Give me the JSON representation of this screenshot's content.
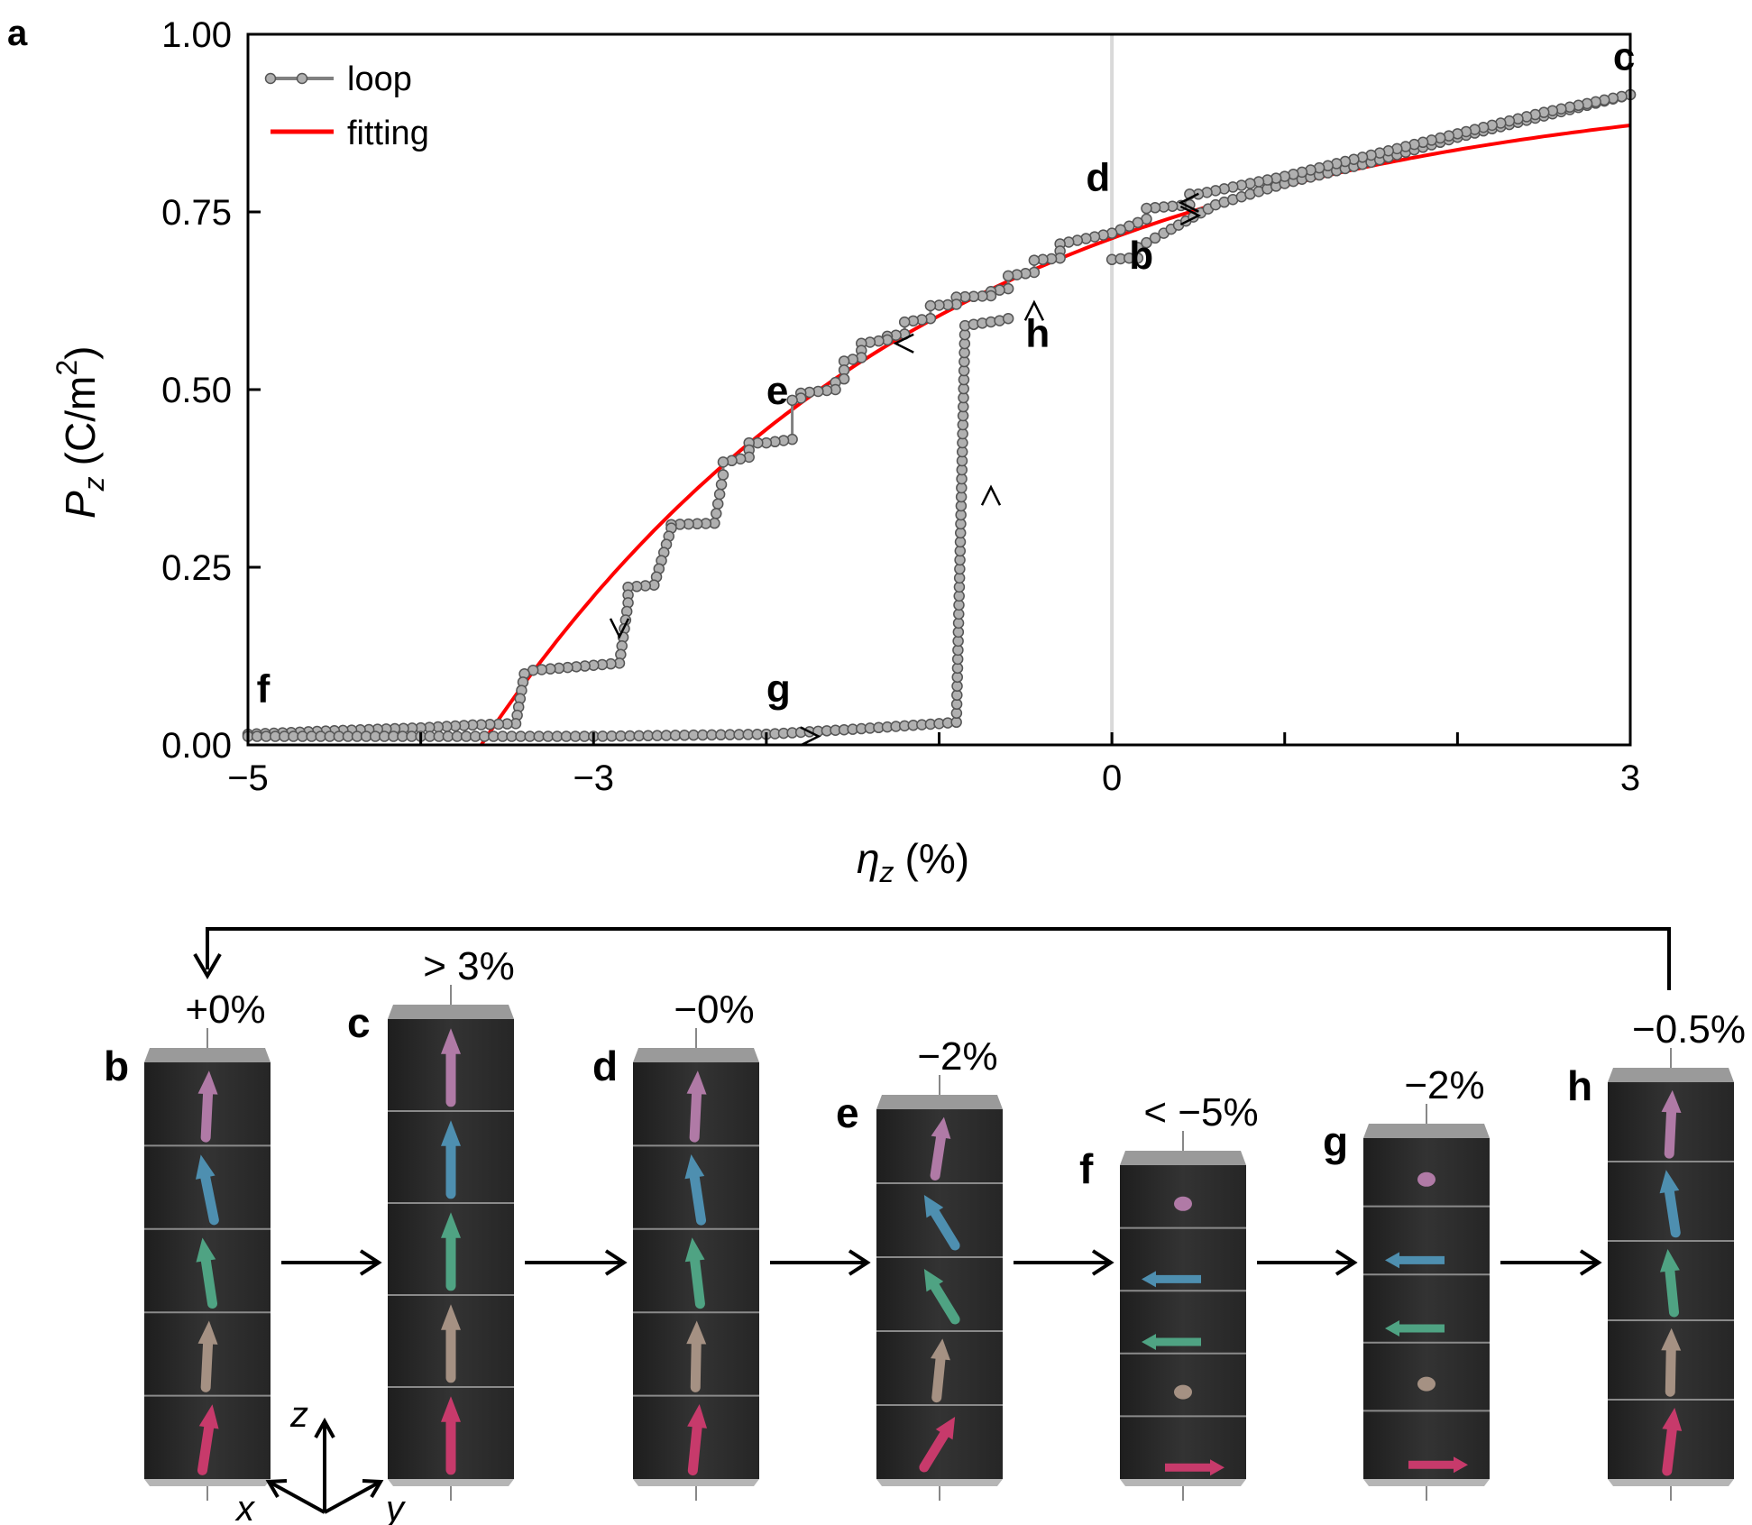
{
  "panel_label": "a",
  "colors": {
    "loop": "#808080",
    "loop_marker_fill": "#b0b0b0",
    "loop_marker_stroke": "#555555",
    "fitting": "#ff0000",
    "zero_line": "#d9d9d9",
    "axis": "#000000",
    "box": "#2b2b2b",
    "arrow_colors": [
      "#b07aa6",
      "#4e8fb0",
      "#4fa383",
      "#a59183",
      "#c73a6b"
    ]
  },
  "chart_data": {
    "type": "line",
    "xlabel_symbol": "η",
    "xlabel_sub": "z",
    "xlabel_unit": "(%)",
    "ylabel_symbol": "P",
    "ylabel_sub": "z",
    "ylabel_unit": "(C/m",
    "ylabel_sup": "2",
    "ylabel_close": ")",
    "xlim": [
      -5,
      3
    ],
    "ylim": [
      0,
      1
    ],
    "x_ticks": [
      -5,
      -3,
      0,
      3
    ],
    "x_tick_labels": [
      "−5",
      "−3",
      "0",
      "3"
    ],
    "x_minor_ticks": [
      -4,
      -2,
      -1,
      1,
      2
    ],
    "y_ticks": [
      0,
      0.25,
      0.5,
      0.75,
      1.0
    ],
    "y_tick_labels": [
      "0.00",
      "0.25",
      "0.50",
      "0.75",
      "1.00"
    ],
    "legend": [
      {
        "key": "loop",
        "label": "loop"
      },
      {
        "key": "fitting",
        "label": "fitting"
      }
    ],
    "legend_position": "top-left",
    "zero_line_x": 0,
    "series": [
      {
        "name": "loop",
        "segments": [
          {
            "name": "b-to-c",
            "points": [
              [
                0,
                0.683
              ],
              [
                0.1,
                0.685
              ],
              [
                0.15,
                0.685
              ],
              [
                0.15,
                0.7
              ],
              [
                0.3,
                0.72
              ],
              [
                0.6,
                0.76
              ],
              [
                1.0,
                0.79
              ],
              [
                1.5,
                0.82
              ],
              [
                2.0,
                0.855
              ],
              [
                2.5,
                0.885
              ],
              [
                3.0,
                0.915
              ]
            ]
          },
          {
            "name": "c-to-f",
            "points": [
              [
                3.0,
                0.915
              ],
              [
                2.5,
                0.89
              ],
              [
                2.0,
                0.86
              ],
              [
                1.5,
                0.83
              ],
              [
                1.0,
                0.8
              ],
              [
                0.5,
                0.775
              ],
              [
                0.45,
                0.775
              ],
              [
                0.45,
                0.76
              ],
              [
                0.2,
                0.755
              ],
              [
                0.2,
                0.74
              ],
              [
                0.0,
                0.72
              ],
              [
                -0.3,
                0.705
              ],
              [
                -0.3,
                0.685
              ],
              [
                -0.45,
                0.682
              ],
              [
                -0.45,
                0.665
              ],
              [
                -0.6,
                0.66
              ],
              [
                -0.6,
                0.642
              ],
              [
                -0.7,
                0.638
              ],
              [
                -0.7,
                0.632
              ],
              [
                -0.9,
                0.63
              ],
              [
                -0.9,
                0.62
              ],
              [
                -1.05,
                0.618
              ],
              [
                -1.05,
                0.6
              ],
              [
                -1.2,
                0.595
              ],
              [
                -1.2,
                0.578
              ],
              [
                -1.3,
                0.575
              ],
              [
                -1.3,
                0.57
              ],
              [
                -1.45,
                0.565
              ],
              [
                -1.45,
                0.545
              ],
              [
                -1.55,
                0.54
              ],
              [
                -1.55,
                0.515
              ],
              [
                -1.6,
                0.51
              ],
              [
                -1.6,
                0.5
              ],
              [
                -1.8,
                0.495
              ],
              [
                -1.8,
                0.488
              ],
              [
                -1.85,
                0.485
              ],
              [
                -1.85,
                0.43
              ],
              [
                -2.0,
                0.425
              ],
              [
                -2.1,
                0.425
              ],
              [
                -2.1,
                0.405
              ],
              [
                -2.2,
                0.4
              ],
              [
                -2.25,
                0.398
              ],
              [
                -2.25,
                0.38
              ],
              [
                -2.3,
                0.312
              ],
              [
                -2.55,
                0.31
              ],
              [
                -2.55,
                0.305
              ],
              [
                -2.65,
                0.225
              ],
              [
                -2.8,
                0.222
              ],
              [
                -2.8,
                0.2
              ],
              [
                -2.85,
                0.115
              ],
              [
                -3.1,
                0.11
              ],
              [
                -3.2,
                0.108
              ],
              [
                -3.35,
                0.105
              ],
              [
                -3.4,
                0.1
              ],
              [
                -3.45,
                0.03
              ],
              [
                -3.7,
                0.028
              ],
              [
                -4.0,
                0.024
              ],
              [
                -4.5,
                0.02
              ],
              [
                -5.0,
                0.015
              ]
            ]
          },
          {
            "name": "f-to-h",
            "points": [
              [
                -5.0,
                0.012
              ],
              [
                -4.0,
                0.012
              ],
              [
                -3.0,
                0.012
              ],
              [
                -2.0,
                0.015
              ],
              [
                -1.5,
                0.022
              ],
              [
                -1.0,
                0.03
              ],
              [
                -0.9,
                0.032
              ],
              [
                -0.85,
                0.59
              ],
              [
                -0.65,
                0.597
              ],
              [
                -0.6,
                0.6
              ]
            ]
          }
        ],
        "arrow_marks": [
          {
            "x": -0.7,
            "y": 0.35,
            "dir": "up"
          },
          {
            "x": -2.85,
            "y": 0.165,
            "dir": "down"
          },
          {
            "x": -1.2,
            "y": 0.565,
            "dir": "left"
          },
          {
            "x": 0.45,
            "y": 0.763,
            "dir": "left"
          },
          {
            "x": 0.45,
            "y": 0.745,
            "dir": "right"
          },
          {
            "x": -1.75,
            "y": 0.012,
            "dir": "right"
          },
          {
            "x": -0.45,
            "y": 0.61,
            "dir": "up"
          }
        ]
      },
      {
        "name": "fitting",
        "function": "0.945*(1-exp(-(x+3.65)/2.6))",
        "x_start": -3.65,
        "x_end": 3
      }
    ],
    "annotations": [
      {
        "label": "c",
        "x": 2.9,
        "y": 0.95
      },
      {
        "label": "d",
        "x": -0.15,
        "y": 0.78
      },
      {
        "label": "b",
        "x": 0.1,
        "y": 0.67
      },
      {
        "label": "h",
        "x": -0.5,
        "y": 0.56
      },
      {
        "label": "e",
        "x": -2.0,
        "y": 0.48
      },
      {
        "label": "f",
        "x": -4.95,
        "y": 0.06
      },
      {
        "label": "g",
        "x": -2.0,
        "y": 0.06
      }
    ]
  },
  "schematic": {
    "loop_back_arrow": "from h to b",
    "axes_labels": {
      "z": "z",
      "x": "x",
      "y": "y"
    },
    "columns": [
      {
        "letter": "b",
        "strain": "+0%",
        "arrows": [
          {
            "t": "up",
            "tilt": 0.05
          },
          {
            "t": "up",
            "tilt": -0.2
          },
          {
            "t": "up",
            "tilt": -0.15
          },
          {
            "t": "up",
            "tilt": 0.05
          },
          {
            "t": "up",
            "tilt": 0.15
          }
        ]
      },
      {
        "letter": "c",
        "strain": "> 3%",
        "arrows": [
          {
            "t": "up",
            "tilt": 0
          },
          {
            "t": "up",
            "tilt": 0
          },
          {
            "t": "up",
            "tilt": 0
          },
          {
            "t": "up",
            "tilt": 0
          },
          {
            "t": "up",
            "tilt": 0
          }
        ]
      },
      {
        "letter": "d",
        "strain": "−0%",
        "arrows": [
          {
            "t": "up",
            "tilt": 0.05
          },
          {
            "t": "up",
            "tilt": -0.15
          },
          {
            "t": "up",
            "tilt": -0.12
          },
          {
            "t": "up",
            "tilt": 0.02
          },
          {
            "t": "up",
            "tilt": 0.1
          }
        ]
      },
      {
        "letter": "e",
        "strain": "−2%",
        "arrows": [
          {
            "t": "up",
            "tilt": 0.15
          },
          {
            "t": "up",
            "tilt": -0.55
          },
          {
            "t": "up",
            "tilt": -0.55
          },
          {
            "t": "up",
            "tilt": 0.1
          },
          {
            "t": "up",
            "tilt": 0.55
          }
        ]
      },
      {
        "letter": "f",
        "strain": "< −5%",
        "arrows": [
          {
            "t": "dot"
          },
          {
            "t": "left"
          },
          {
            "t": "left"
          },
          {
            "t": "dot"
          },
          {
            "t": "right"
          }
        ]
      },
      {
        "letter": "g",
        "strain": "−2%",
        "arrows": [
          {
            "t": "dot"
          },
          {
            "t": "left"
          },
          {
            "t": "left"
          },
          {
            "t": "dot"
          },
          {
            "t": "right"
          }
        ]
      },
      {
        "letter": "h",
        "strain": "−0.5%",
        "arrows": [
          {
            "t": "up",
            "tilt": 0.05
          },
          {
            "t": "up",
            "tilt": -0.15
          },
          {
            "t": "up",
            "tilt": -0.1
          },
          {
            "t": "up",
            "tilt": 0.02
          },
          {
            "t": "up",
            "tilt": 0.12
          }
        ]
      }
    ]
  }
}
